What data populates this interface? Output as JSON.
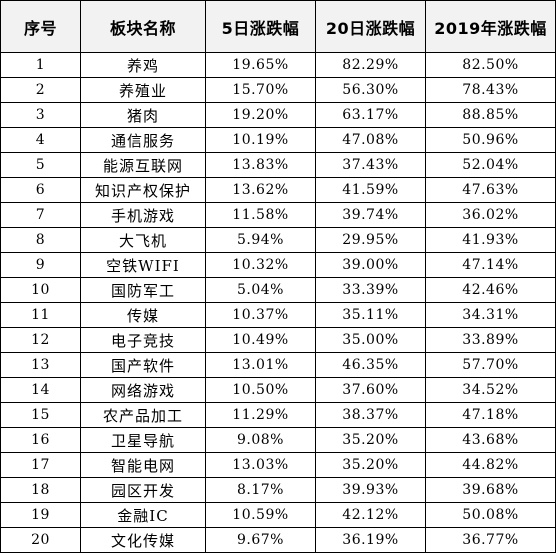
{
  "headers": [
    "序号",
    "板块名称",
    "5日涨跌幅",
    "20日涨跌幅",
    "2019年涨跌幅"
  ],
  "rows": [
    [
      "1",
      "养鸡",
      "19.65%",
      "82.29%",
      "82.50%"
    ],
    [
      "2",
      "养殖业",
      "15.70%",
      "56.30%",
      "78.43%"
    ],
    [
      "3",
      "猪肉",
      "19.20%",
      "63.17%",
      "88.85%"
    ],
    [
      "4",
      "通信服务",
      "10.19%",
      "47.08%",
      "50.96%"
    ],
    [
      "5",
      "能源互联网",
      "13.83%",
      "37.43%",
      "52.04%"
    ],
    [
      "6",
      "知识产权保护",
      "13.62%",
      "41.59%",
      "47.63%"
    ],
    [
      "7",
      "手机游戏",
      "11.58%",
      "39.74%",
      "36.02%"
    ],
    [
      "8",
      "大飞机",
      "5.94%",
      "29.95%",
      "41.93%"
    ],
    [
      "9",
      "空铁WIFI",
      "10.32%",
      "39.00%",
      "47.14%"
    ],
    [
      "10",
      "国防军工",
      "5.04%",
      "33.39%",
      "42.46%"
    ],
    [
      "11",
      "传媒",
      "10.37%",
      "35.11%",
      "34.31%"
    ],
    [
      "12",
      "电子竞技",
      "10.49%",
      "35.00%",
      "33.89%"
    ],
    [
      "13",
      "国产软件",
      "13.01%",
      "46.35%",
      "57.70%"
    ],
    [
      "14",
      "网络游戏",
      "10.50%",
      "37.60%",
      "34.52%"
    ],
    [
      "15",
      "农产品加工",
      "11.29%",
      "38.37%",
      "47.18%"
    ],
    [
      "16",
      "卫星导航",
      "9.08%",
      "35.20%",
      "43.68%"
    ],
    [
      "17",
      "智能电网",
      "13.03%",
      "35.20%",
      "44.82%"
    ],
    [
      "18",
      "园区开发",
      "8.17%",
      "39.93%",
      "39.68%"
    ],
    [
      "19",
      "金融IC",
      "10.59%",
      "42.12%",
      "50.08%"
    ],
    [
      "20",
      "文化传媒",
      "9.67%",
      "36.19%",
      "36.77%"
    ]
  ]
}
